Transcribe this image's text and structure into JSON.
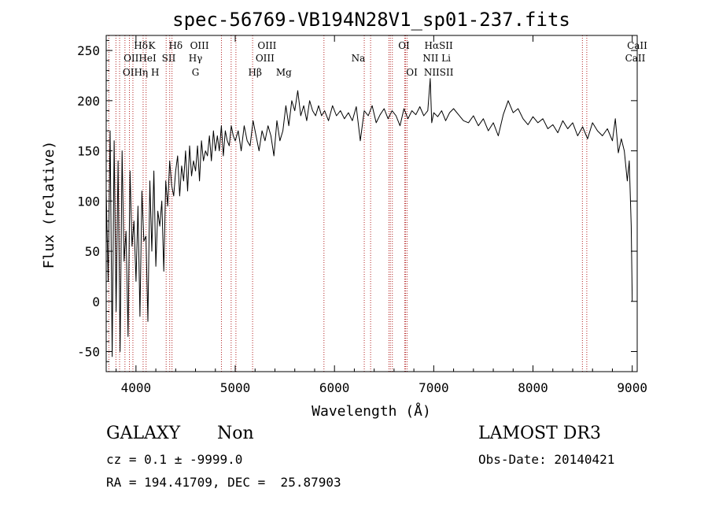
{
  "chart_data": {
    "type": "line",
    "title": "spec-56769-VB194N28V1_sp01-237.fits",
    "xlabel": "Wavelength (Å)",
    "ylabel": "Flux (relative)",
    "xlim": [
      3700,
      9050
    ],
    "ylim": [
      -70,
      265
    ],
    "xticks": [
      4000,
      5000,
      6000,
      7000,
      8000,
      9000
    ],
    "yticks": [
      -50,
      0,
      50,
      100,
      150,
      200,
      250
    ],
    "grid": false,
    "series": [
      {
        "name": "flux",
        "x": [
          3700,
          3720,
          3740,
          3760,
          3780,
          3800,
          3820,
          3840,
          3860,
          3880,
          3900,
          3920,
          3940,
          3960,
          3980,
          4000,
          4020,
          4040,
          4060,
          4080,
          4100,
          4120,
          4140,
          4160,
          4180,
          4200,
          4220,
          4240,
          4260,
          4280,
          4300,
          4320,
          4340,
          4360,
          4380,
          4400,
          4420,
          4440,
          4460,
          4480,
          4500,
          4520,
          4540,
          4560,
          4580,
          4600,
          4620,
          4640,
          4660,
          4680,
          4700,
          4720,
          4740,
          4760,
          4780,
          4800,
          4820,
          4840,
          4860,
          4880,
          4900,
          4920,
          4940,
          4960,
          4980,
          5000,
          5030,
          5060,
          5090,
          5120,
          5150,
          5180,
          5210,
          5240,
          5270,
          5300,
          5330,
          5360,
          5390,
          5420,
          5450,
          5480,
          5510,
          5540,
          5570,
          5600,
          5630,
          5660,
          5690,
          5720,
          5750,
          5780,
          5810,
          5840,
          5870,
          5900,
          5940,
          5980,
          6020,
          6060,
          6100,
          6140,
          6180,
          6220,
          6260,
          6300,
          6340,
          6380,
          6420,
          6460,
          6500,
          6540,
          6580,
          6620,
          6660,
          6700,
          6740,
          6780,
          6820,
          6860,
          6900,
          6940,
          6965,
          6980,
          7000,
          7040,
          7080,
          7120,
          7160,
          7200,
          7250,
          7300,
          7350,
          7400,
          7450,
          7500,
          7550,
          7600,
          7650,
          7700,
          7750,
          7800,
          7850,
          7900,
          7950,
          8000,
          8050,
          8100,
          8150,
          8200,
          8250,
          8300,
          8350,
          8400,
          8450,
          8500,
          8550,
          8600,
          8650,
          8700,
          8750,
          8800,
          8830,
          8860,
          8890,
          8920,
          8950,
          8970,
          8990,
          9000
        ],
        "values": [
          110,
          20,
          170,
          -55,
          160,
          -10,
          140,
          -50,
          150,
          40,
          70,
          -35,
          130,
          55,
          80,
          20,
          95,
          -15,
          110,
          60,
          65,
          -20,
          120,
          50,
          130,
          35,
          90,
          75,
          100,
          30,
          120,
          95,
          140,
          115,
          105,
          130,
          145,
          105,
          135,
          120,
          150,
          110,
          155,
          125,
          140,
          130,
          155,
          120,
          160,
          140,
          150,
          145,
          165,
          140,
          170,
          150,
          165,
          150,
          175,
          145,
          170,
          160,
          155,
          175,
          165,
          160,
          170,
          150,
          175,
          160,
          155,
          180,
          165,
          150,
          170,
          160,
          175,
          165,
          145,
          180,
          160,
          170,
          195,
          175,
          200,
          190,
          210,
          185,
          195,
          180,
          200,
          190,
          185,
          195,
          185,
          190,
          180,
          195,
          185,
          190,
          182,
          188,
          180,
          194,
          160,
          190,
          185,
          195,
          178,
          186,
          192,
          182,
          190,
          185,
          175,
          192,
          182,
          190,
          186,
          194,
          185,
          190,
          222,
          178,
          188,
          184,
          190,
          180,
          188,
          192,
          186,
          180,
          178,
          185,
          175,
          182,
          170,
          178,
          165,
          186,
          200,
          188,
          192,
          182,
          176,
          184,
          178,
          182,
          172,
          176,
          168,
          180,
          172,
          178,
          165,
          174,
          162,
          178,
          170,
          165,
          172,
          160,
          182,
          148,
          162,
          150,
          120,
          140,
          75,
          0
        ]
      }
    ],
    "emission_lines": [
      {
        "name": "OII",
        "wavelength": 3727
      },
      {
        "name": "Hθ",
        "wavelength": 3798
      },
      {
        "name": "Hη",
        "wavelength": 3835
      },
      {
        "name": "HeI",
        "wavelength": 3889
      },
      {
        "name": "K",
        "wavelength": 3934
      },
      {
        "name": "H",
        "wavelength": 3969
      },
      {
        "name": "Hδ",
        "wavelength": 4102
      },
      {
        "name": "SII",
        "wavelength": 4072
      },
      {
        "name": "Hγ",
        "wavelength": 4340
      },
      {
        "name": "G",
        "wavelength": 4304
      },
      {
        "name": "OIII",
        "wavelength": 4363
      },
      {
        "name": "Hβ",
        "wavelength": 4861
      },
      {
        "name": "OIII",
        "wavelength": 4959
      },
      {
        "name": "OIII",
        "wavelength": 5007
      },
      {
        "name": "Mg",
        "wavelength": 5175
      },
      {
        "name": "Na",
        "wavelength": 5894
      },
      {
        "name": "OI",
        "wavelength": 6300
      },
      {
        "name": "OI",
        "wavelength": 6364
      },
      {
        "name": "NII",
        "wavelength": 6548
      },
      {
        "name": "Hα",
        "wavelength": 6563
      },
      {
        "name": "NII",
        "wavelength": 6583
      },
      {
        "name": "Li",
        "wavelength": 6707
      },
      {
        "name": "SII",
        "wavelength": 6716
      },
      {
        "name": "SII",
        "wavelength": 6731
      },
      {
        "name": "CaII",
        "wavelength": 8498
      },
      {
        "name": "CaII",
        "wavelength": 8542
      }
    ],
    "line_labels": [
      {
        "text": "Hδ",
        "wavelength": 4050,
        "row": 1
      },
      {
        "text": "K",
        "wavelength": 4160,
        "row": 1
      },
      {
        "text": "Hδ",
        "wavelength": 4400,
        "row": 1
      },
      {
        "text": "OIII",
        "wavelength": 4640,
        "row": 1
      },
      {
        "text": "OIII",
        "wavelength": 5320,
        "row": 1
      },
      {
        "text": "OI",
        "wavelength": 6700,
        "row": 1
      },
      {
        "text": "HαSII",
        "wavelength": 7050,
        "row": 1
      },
      {
        "text": "CaII",
        "wavelength": 9050,
        "row": 1
      },
      {
        "text": "OIIHeI",
        "wavelength": 4040,
        "row": 2
      },
      {
        "text": "SII",
        "wavelength": 4330,
        "row": 2
      },
      {
        "text": "Hγ",
        "wavelength": 4600,
        "row": 2
      },
      {
        "text": "OIII",
        "wavelength": 5300,
        "row": 2
      },
      {
        "text": "Na",
        "wavelength": 6240,
        "row": 2
      },
      {
        "text": "NII Li",
        "wavelength": 7030,
        "row": 2
      },
      {
        "text": "CaII",
        "wavelength": 9030,
        "row": 2
      },
      {
        "text": "OIHη H",
        "wavelength": 4050,
        "row": 3
      },
      {
        "text": "G",
        "wavelength": 4600,
        "row": 3
      },
      {
        "text": "Hβ",
        "wavelength": 5200,
        "row": 3
      },
      {
        "text": "Mg",
        "wavelength": 5490,
        "row": 3
      },
      {
        "text": "OI",
        "wavelength": 6780,
        "row": 3
      },
      {
        "text": "NIISII",
        "wavelength": 7050,
        "row": 3
      }
    ]
  },
  "info": {
    "class": "GALAXY",
    "subclass": "Non",
    "survey": "LAMOST DR3",
    "cz_line": "cz = 0.1 ± -9999.0",
    "obs_date_line": "Obs-Date: 20140421",
    "coord_line": "RA = 194.41709, DEC =  25.87903"
  }
}
